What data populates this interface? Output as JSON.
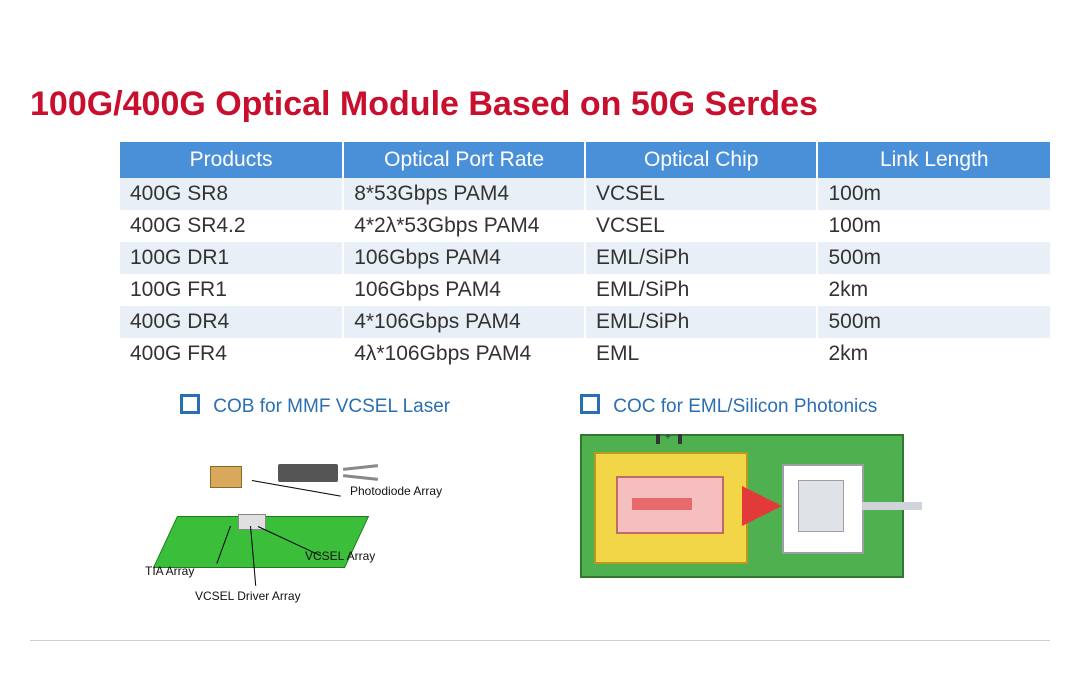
{
  "title": "100G/400G Optical Module Based on 50G Serdes",
  "table": {
    "columns": [
      "Products",
      "Optical Port Rate",
      "Optical Chip",
      "Link Length"
    ],
    "rows": [
      [
        "400G SR8",
        "8*53Gbps PAM4",
        "VCSEL",
        "100m"
      ],
      [
        "400G SR4.2",
        "4*2λ*53Gbps PAM4",
        "VCSEL",
        "100m"
      ],
      [
        "100G DR1",
        "106Gbps PAM4",
        "EML/SiPh",
        "500m"
      ],
      [
        "100G FR1",
        "106Gbps PAM4",
        "EML/SiPh",
        "2km"
      ],
      [
        "400G DR4",
        "4*106Gbps PAM4",
        "EML/SiPh",
        "500m"
      ],
      [
        "400G FR4",
        "4λ*106Gbps PAM4",
        "EML",
        "2km"
      ]
    ],
    "header_bg": "#4a90d9",
    "header_color": "#ffffff",
    "row_alt_bg": "#e8eff7",
    "text_color": "#333333",
    "fontsize": 21
  },
  "captions": {
    "left": "COB for MMF VCSEL Laser",
    "right": "COC for EML/Silicon Photonics",
    "color": "#2a6fb0"
  },
  "left_diagram": {
    "labels": {
      "photodiode": "Photodiode Array",
      "tia": "TIA Array",
      "vcsel_driver": "VCSEL Driver Array",
      "vcsel_array": "VCSEL Array"
    },
    "colors": {
      "pcb": "#3bbf3b",
      "chip_gold": "#d9a85a",
      "chip_gray": "#e0e0e0",
      "connector": "#555555"
    }
  },
  "right_diagram": {
    "colors": {
      "board": "#4fb04f",
      "pad": "#f2d648",
      "insert": "#f6bfbf",
      "slot": "#e86a6a",
      "triangle": "#e23a3a",
      "box": "#ffffff",
      "box_inner": "#dfe3e8"
    }
  },
  "title_color": "#c8102e"
}
